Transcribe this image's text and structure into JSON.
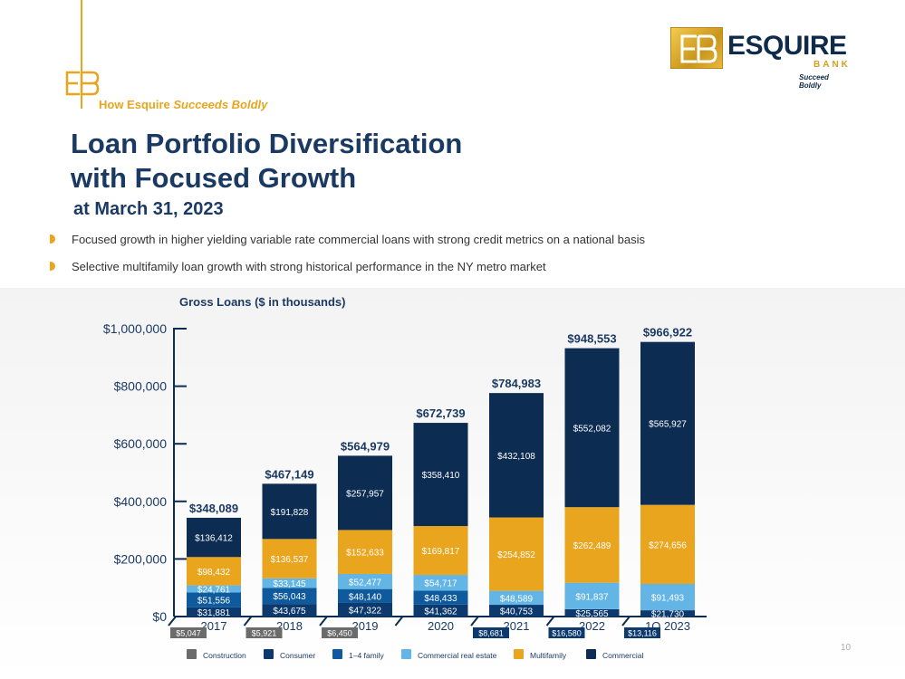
{
  "header": {
    "eyebrow_prefix": "How Esquire ",
    "eyebrow_emphasis": "Succeeds Boldly",
    "title_line1": "Loan Portfolio Diversification",
    "title_line2": "with Focused Growth",
    "subtitle": "at March 31, 2023"
  },
  "logo": {
    "name": "ESQUIRE",
    "sub": "BANK",
    "tagline": "Succeed Boldly",
    "colors": {
      "navy": "#0f2b4c",
      "gold": "#d69e1f"
    }
  },
  "bullets": [
    "Focused growth in higher yielding variable rate commercial loans with strong credit metrics on a national basis",
    "Selective multifamily loan growth with strong historical performance in the NY metro market"
  ],
  "page_number": "10",
  "chart_data": {
    "type": "bar",
    "stacked": true,
    "title": "Gross Loans ($ in thousands)",
    "categories": [
      "2017",
      "2018",
      "2019",
      "2020",
      "2021",
      "2022",
      "1Q 2023"
    ],
    "ylim": [
      0,
      1000000
    ],
    "yticks": [
      "$0",
      "$200,000",
      "$400,000",
      "$600,000",
      "$800,000",
      "$1,000,000"
    ],
    "ytick_values": [
      0,
      200000,
      400000,
      600000,
      800000,
      1000000
    ],
    "totals": [
      "$348,089",
      "$467,149",
      "$564,979",
      "$672,739",
      "$784,983",
      "$948,553",
      "$966,922"
    ],
    "series": [
      {
        "name": "Construction",
        "color": "#6b6b6b",
        "values": [
          5047,
          5921,
          6450,
          0,
          8681,
          16580,
          13116
        ],
        "labels": [
          "$5,047",
          "$5,921",
          "$6,450",
          "",
          "$8,681",
          "$16,580",
          "$13,116"
        ]
      },
      {
        "name": "Consumer",
        "color": "#0c3a6e",
        "values": [
          31881,
          43675,
          47322,
          41362,
          40753,
          25565,
          21730
        ],
        "labels": [
          "$31,881",
          "$43,675",
          "$47,322",
          "$41,362",
          "$40,753",
          "$25,565",
          "$21,730"
        ]
      },
      {
        "name": "1–4 family",
        "color": "#0f5a9c",
        "values": [
          51556,
          56043,
          48140,
          48433,
          0,
          0,
          0
        ],
        "labels": [
          "$51,556",
          "$56,043",
          "$48,140",
          "$48,433",
          "",
          "",
          ""
        ]
      },
      {
        "name": "Commercial real estate",
        "color": "#62b5e5",
        "values": [
          24761,
          33145,
          52477,
          54717,
          48589,
          91837,
          91493
        ],
        "labels": [
          "$24,761",
          "$33,145",
          "$52,477",
          "$54,717",
          "$48,589",
          "$91,837",
          "$91,493"
        ]
      },
      {
        "name": "Multifamily",
        "color": "#e8a51d",
        "values": [
          98432,
          136537,
          152633,
          169817,
          254852,
          262489,
          274656
        ],
        "labels": [
          "$98,432",
          "$136,537",
          "$152,633",
          "$169,817",
          "$254,852",
          "$262,489",
          "$274,656"
        ]
      },
      {
        "name": "Commercial",
        "color": "#0c2c52",
        "values": [
          136412,
          191828,
          257957,
          358410,
          432108,
          552082,
          565927
        ],
        "labels": [
          "$136,412",
          "$191,828",
          "$257,957",
          "$358,410",
          "$432,108",
          "$552,082",
          "$565,927"
        ]
      }
    ],
    "legend_position": "bottom",
    "grid": false
  }
}
